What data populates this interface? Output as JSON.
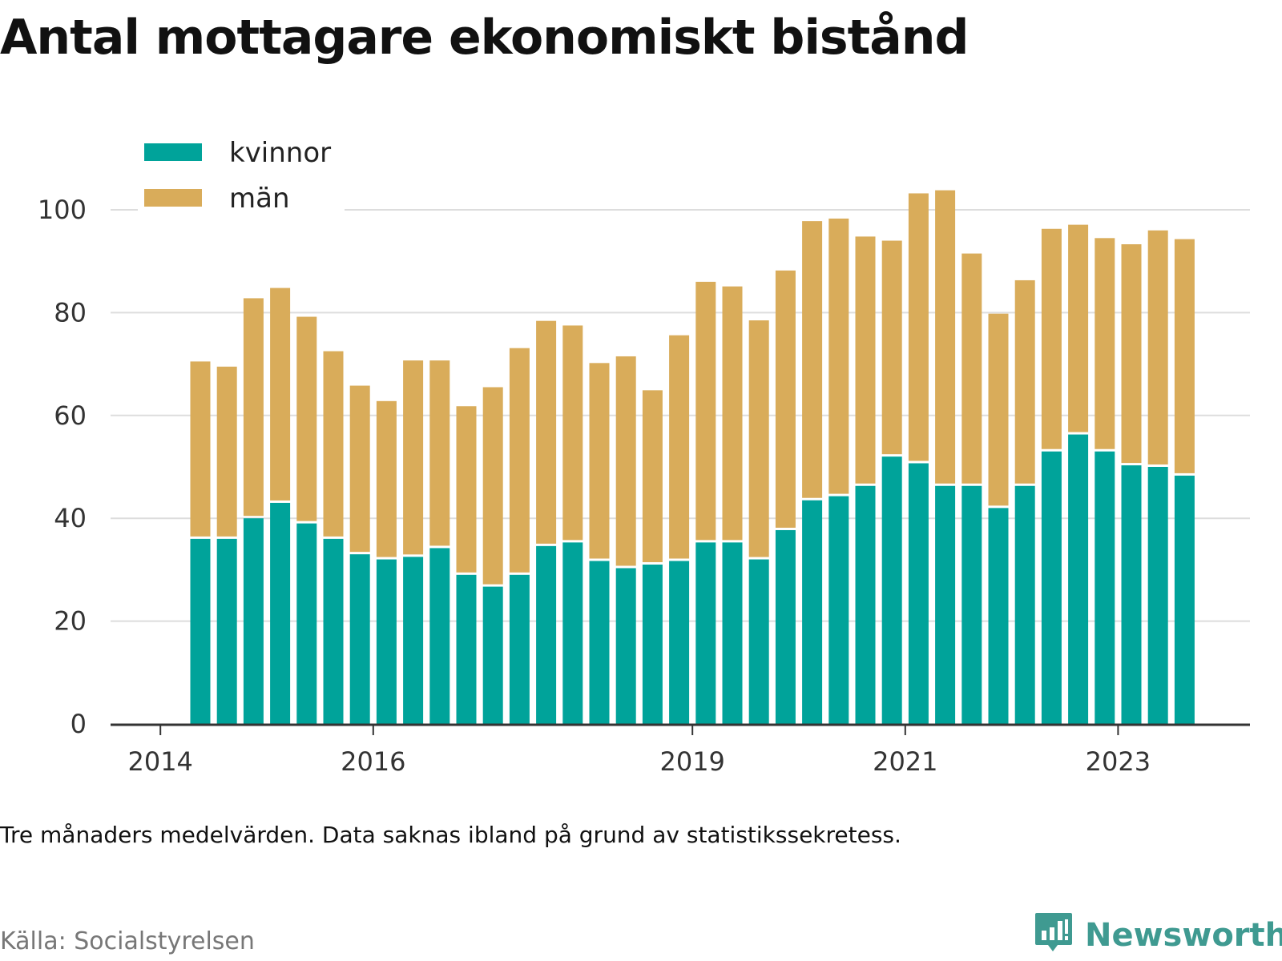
{
  "header": {
    "title": "Antal mottagare ekonomiskt bistånd"
  },
  "footer": {
    "note": "Tre månaders medelvärden. Data saknas ibland på grund av statistikssekretess.",
    "source": "Källa: Socialstyrelsen",
    "brand": "Newsworthy",
    "brand_icon": "bar-chart-speech-bubble-icon"
  },
  "colors": {
    "kvinnor": "#00a39a",
    "man": "#d9ac5a",
    "grid": "#dddddd",
    "axis": "#333333",
    "brand": "#3f9a91"
  },
  "chart_data": {
    "type": "bar",
    "stacked": true,
    "title": "Antal mottagare ekonomiskt bistånd",
    "xlabel": "",
    "ylabel": "",
    "ylim": [
      0,
      100
    ],
    "yticks": [
      0,
      20,
      40,
      60,
      80,
      100
    ],
    "xticks": [
      "2014",
      "2016",
      "2019",
      "2021",
      "2023"
    ],
    "grid": true,
    "legend_position": "top-left",
    "categories": [
      "2014-Q2",
      "2014-Q3",
      "2014-Q4",
      "2015-Q1",
      "2015-Q2",
      "2015-Q3",
      "2015-Q4",
      "2016-Q1",
      "2016-Q2",
      "2016-Q3",
      "2016-Q4",
      "2017-Q1",
      "2017-Q2",
      "2017-Q3",
      "2017-Q4",
      "2018-Q1",
      "2018-Q2",
      "2018-Q3",
      "2018-Q4",
      "2019-Q1",
      "2019-Q2",
      "2019-Q3",
      "2019-Q4",
      "2020-Q1",
      "2020-Q2",
      "2020-Q3",
      "2020-Q4",
      "2021-Q1",
      "2021-Q2",
      "2021-Q3",
      "2021-Q4",
      "2022-Q1",
      "2022-Q2",
      "2022-Q3",
      "2022-Q4",
      "2023-Q1",
      "2023-Q2",
      "2023-Q3"
    ],
    "series": [
      {
        "name": "kvinnor",
        "values": [
          36,
          36,
          40,
          43,
          39,
          36,
          33,
          32,
          32.5,
          34.2,
          29,
          26.7,
          29,
          34.6,
          35.3,
          31.7,
          30.3,
          31,
          31.7,
          35.3,
          35.3,
          32,
          37.7,
          43.5,
          44.3,
          46.3,
          52,
          50.7,
          46.3,
          46.3,
          42,
          46.3,
          53,
          56.3,
          53,
          50.3,
          50,
          48.3
        ]
      },
      {
        "name": "män",
        "values": [
          34.5,
          33.5,
          42.8,
          41.8,
          40.2,
          36.5,
          32.8,
          30.8,
          38.2,
          36.5,
          32.8,
          38.8,
          44.1,
          43.8,
          42.2,
          38.5,
          41.2,
          33.9,
          43.9,
          50.7,
          49.8,
          46.5,
          50.5,
          54.3,
          54,
          48.5,
          42,
          52.5,
          57.5,
          45.2,
          37.8,
          40,
          43.3,
          40.8,
          41.5,
          43,
          46,
          46
        ]
      }
    ]
  }
}
